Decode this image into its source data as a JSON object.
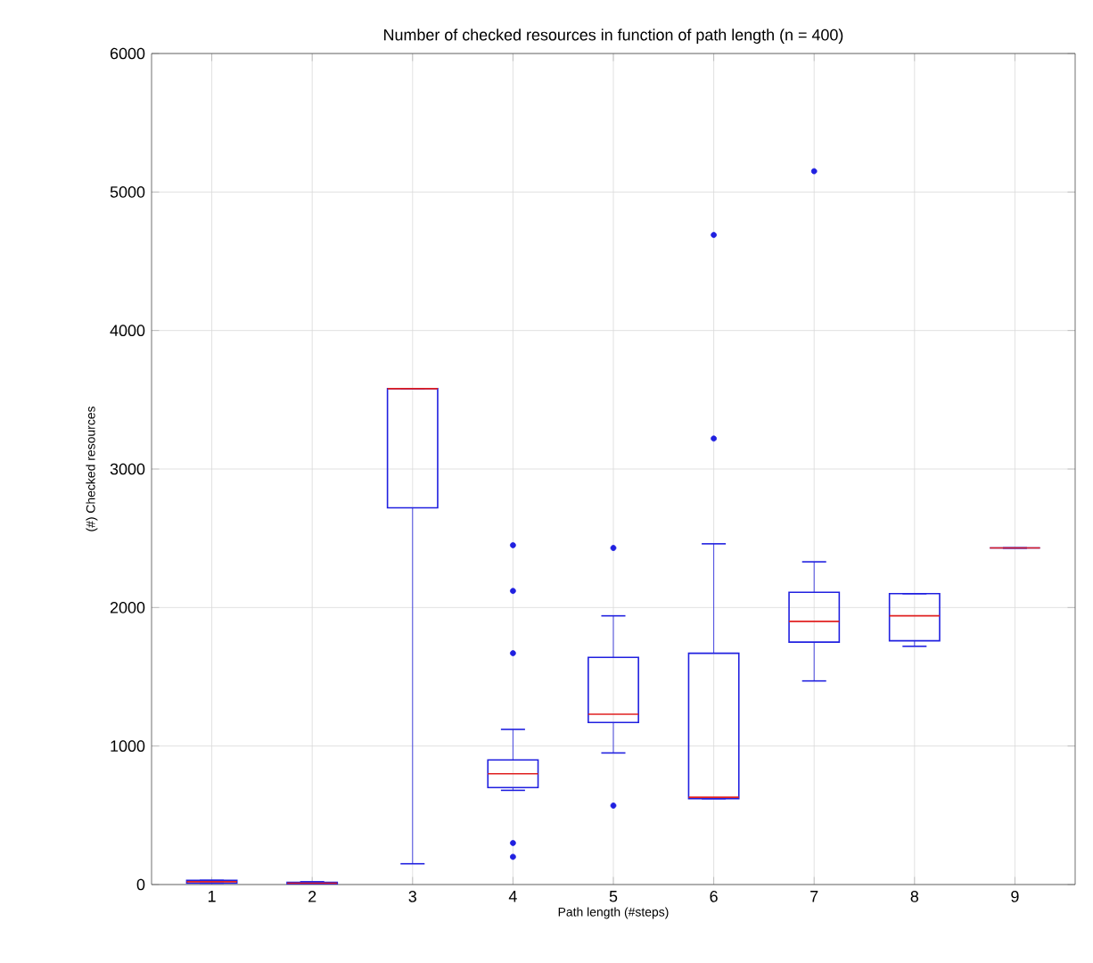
{
  "chart_data": {
    "type": "box",
    "title": "Number of checked resources in function of path length (n = 400)",
    "xlabel": "Path length (#steps)",
    "ylabel": "(#) Checked resources",
    "categories": [
      "1",
      "2",
      "3",
      "4",
      "5",
      "6",
      "7",
      "8",
      "9"
    ],
    "boxes": [
      {
        "low": 10,
        "q1": 10,
        "median": 20,
        "q3": 30,
        "high": 30
      },
      {
        "low": 0,
        "q1": 5,
        "median": 10,
        "q3": 15,
        "high": 20
      },
      {
        "low": 150,
        "q1": 2720,
        "median": 3580,
        "q3": 3580,
        "high": 3580
      },
      {
        "low": 680,
        "q1": 700,
        "median": 800,
        "q3": 900,
        "high": 1120,
        "outliers": [
          2450,
          2120,
          1670,
          300,
          200
        ]
      },
      {
        "low": 950,
        "q1": 1170,
        "median": 1230,
        "q3": 1640,
        "high": 1940,
        "outliers": [
          2430,
          570
        ]
      },
      {
        "low": 620,
        "q1": 620,
        "median": 630,
        "q3": 1670,
        "high": 2460,
        "outliers": [
          3220,
          4690
        ]
      },
      {
        "low": 1470,
        "q1": 1750,
        "median": 1900,
        "q3": 2110,
        "high": 2330,
        "outliers": [
          5150
        ]
      },
      {
        "low": 1720,
        "q1": 1760,
        "median": 1940,
        "q3": 2100,
        "high": 2100
      },
      {
        "low": 2430,
        "q1": 2430,
        "median": 2430,
        "q3": 2430,
        "high": 2430
      }
    ],
    "color": "#2020e0",
    "ylim": [
      0,
      6000
    ],
    "yticks": [
      0,
      1000,
      2000,
      3000,
      4000,
      5000,
      6000
    ],
    "grid": true
  }
}
